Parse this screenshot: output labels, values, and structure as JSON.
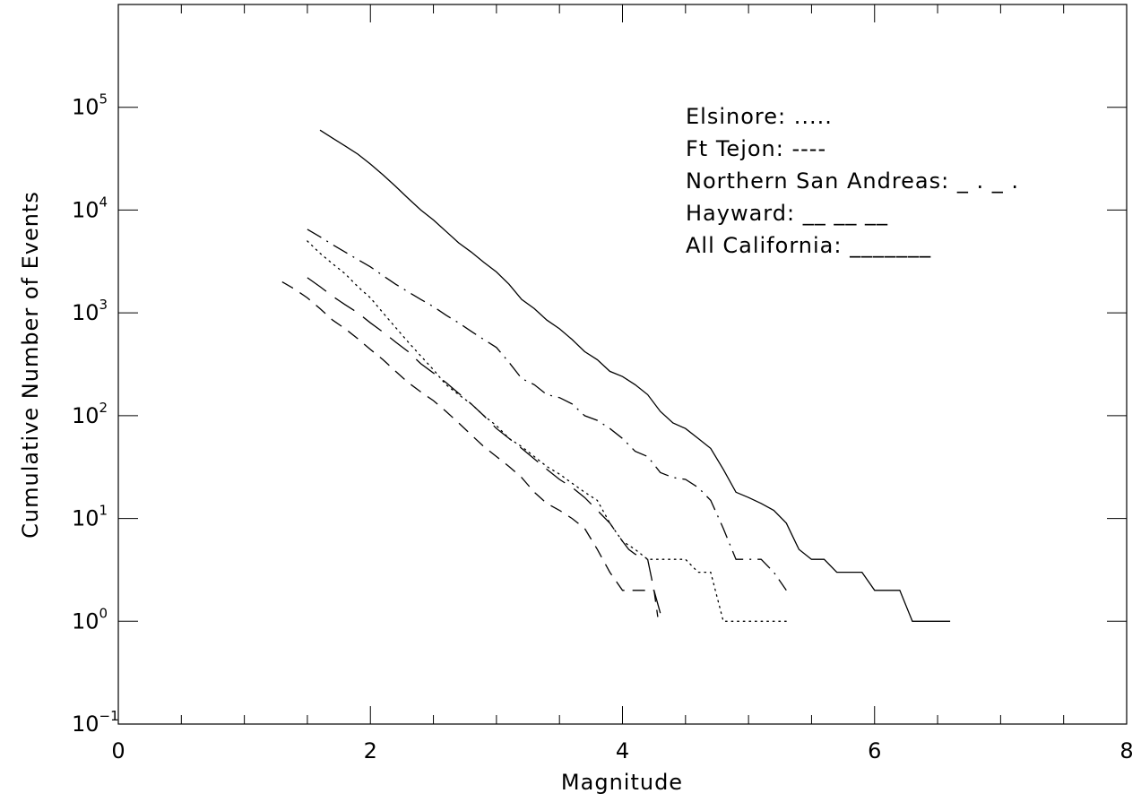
{
  "chart_data": {
    "type": "line",
    "title": "",
    "xlabel": "Magnitude",
    "ylabel": "Cumulative Number of Events",
    "xlim": [
      0,
      8
    ],
    "ylim": [
      0.1,
      1000000
    ],
    "yscale": "log",
    "grid": false,
    "legend_position": "top-right",
    "x_ticks": [
      "0",
      "2",
      "4",
      "6",
      "8"
    ],
    "y_ticks": [
      {
        "base": "10",
        "exp": "−1",
        "value": 0.1
      },
      {
        "base": "10",
        "exp": "0",
        "value": 1
      },
      {
        "base": "10",
        "exp": "1",
        "value": 10
      },
      {
        "base": "10",
        "exp": "2",
        "value": 100
      },
      {
        "base": "10",
        "exp": "3",
        "value": 1000
      },
      {
        "base": "10",
        "exp": "4",
        "value": 10000
      },
      {
        "base": "10",
        "exp": "5",
        "value": 100000
      }
    ],
    "series": [
      {
        "name": "Elsinore: .....",
        "style": "dotted",
        "x": [
          1.5,
          1.6,
          1.7,
          1.8,
          1.9,
          2.0,
          2.1,
          2.2,
          2.3,
          2.4,
          2.5,
          2.6,
          2.7,
          2.8,
          2.9,
          3.0,
          3.1,
          3.2,
          3.3,
          3.4,
          3.5,
          3.6,
          3.7,
          3.8,
          3.9,
          4.0,
          4.1,
          4.2,
          4.3,
          4.4,
          4.5,
          4.6,
          4.7,
          4.8,
          4.9,
          5.0,
          5.1,
          5.2,
          5.3
        ],
        "y": [
          5000,
          3800,
          3000,
          2400,
          1800,
          1400,
          1000,
          720,
          520,
          380,
          280,
          200,
          160,
          130,
          100,
          80,
          60,
          50,
          40,
          32,
          27,
          22,
          18,
          15,
          9,
          6,
          5,
          4,
          4,
          4,
          4,
          3,
          3,
          1,
          1,
          1,
          1,
          1,
          1
        ]
      },
      {
        "name": "Ft Tejon: ----",
        "style": "short-dash",
        "x": [
          1.3,
          1.4,
          1.5,
          1.6,
          1.7,
          1.8,
          1.9,
          2.0,
          2.1,
          2.2,
          2.3,
          2.4,
          2.5,
          2.6,
          2.7,
          2.8,
          2.9,
          3.0,
          3.1,
          3.2,
          3.3,
          3.4,
          3.5,
          3.6,
          3.7,
          3.8,
          3.9,
          4.0,
          4.1,
          4.2,
          4.25,
          4.28
        ],
        "y": [
          2000,
          1700,
          1400,
          1100,
          850,
          700,
          560,
          440,
          350,
          270,
          210,
          170,
          140,
          110,
          85,
          65,
          50,
          40,
          32,
          25,
          18,
          14,
          12,
          10,
          8,
          5,
          3,
          2,
          2,
          2,
          2,
          1.1
        ]
      },
      {
        "name": "Northern San Andreas: _ . _ .",
        "style": "dash-dot",
        "x": [
          1.5,
          1.6,
          1.7,
          1.8,
          1.9,
          2.0,
          2.1,
          2.2,
          2.3,
          2.4,
          2.5,
          2.6,
          2.7,
          2.8,
          2.9,
          3.0,
          3.1,
          3.2,
          3.3,
          3.4,
          3.5,
          3.6,
          3.7,
          3.8,
          3.9,
          4.0,
          4.1,
          4.2,
          4.3,
          4.4,
          4.5,
          4.6,
          4.7,
          4.8,
          4.9,
          5.0,
          5.1,
          5.2,
          5.3
        ],
        "y": [
          6500,
          5500,
          4600,
          3900,
          3300,
          2800,
          2300,
          1900,
          1600,
          1350,
          1150,
          950,
          800,
          660,
          550,
          460,
          330,
          230,
          200,
          160,
          150,
          130,
          100,
          90,
          75,
          60,
          45,
          40,
          28,
          25,
          24,
          20,
          15,
          8,
          4,
          4,
          4,
          3,
          2
        ]
      },
      {
        "name": "Hayward: __ __ __",
        "style": "long-dash",
        "x": [
          1.5,
          1.6,
          1.7,
          1.8,
          1.9,
          2.0,
          2.1,
          2.2,
          2.3,
          2.4,
          2.5,
          2.6,
          2.7,
          2.8,
          2.9,
          3.0,
          3.1,
          3.2,
          3.3,
          3.4,
          3.5,
          3.6,
          3.7,
          3.8,
          3.9,
          4.0,
          4.05,
          4.1,
          4.2,
          4.25,
          4.3
        ],
        "y": [
          2200,
          1800,
          1450,
          1200,
          1000,
          800,
          650,
          520,
          420,
          320,
          260,
          210,
          165,
          130,
          100,
          75,
          60,
          48,
          38,
          30,
          24,
          20,
          16,
          12,
          9,
          6,
          5,
          4.5,
          4,
          2,
          1.2
        ]
      },
      {
        "name": "All California: _______",
        "style": "solid",
        "x": [
          1.6,
          1.7,
          1.8,
          1.9,
          2.0,
          2.1,
          2.2,
          2.3,
          2.4,
          2.5,
          2.6,
          2.7,
          2.8,
          2.9,
          3.0,
          3.1,
          3.2,
          3.3,
          3.4,
          3.5,
          3.6,
          3.7,
          3.8,
          3.9,
          4.0,
          4.1,
          4.2,
          4.3,
          4.4,
          4.5,
          4.6,
          4.7,
          4.8,
          4.9,
          5.0,
          5.1,
          5.2,
          5.3,
          5.4,
          5.5,
          5.6,
          5.7,
          5.8,
          5.9,
          6.0,
          6.1,
          6.2,
          6.3,
          6.4,
          6.5,
          6.6
        ],
        "y": [
          60000,
          50000,
          42000,
          35000,
          28000,
          22000,
          17000,
          13000,
          10000,
          8000,
          6200,
          4800,
          3900,
          3100,
          2500,
          1900,
          1350,
          1100,
          850,
          700,
          550,
          420,
          350,
          270,
          240,
          200,
          160,
          110,
          85,
          75,
          60,
          48,
          30,
          18,
          16,
          14,
          12,
          9,
          5,
          4,
          4,
          3,
          3,
          3,
          2,
          2,
          2,
          1,
          1,
          1,
          1
        ]
      }
    ]
  }
}
